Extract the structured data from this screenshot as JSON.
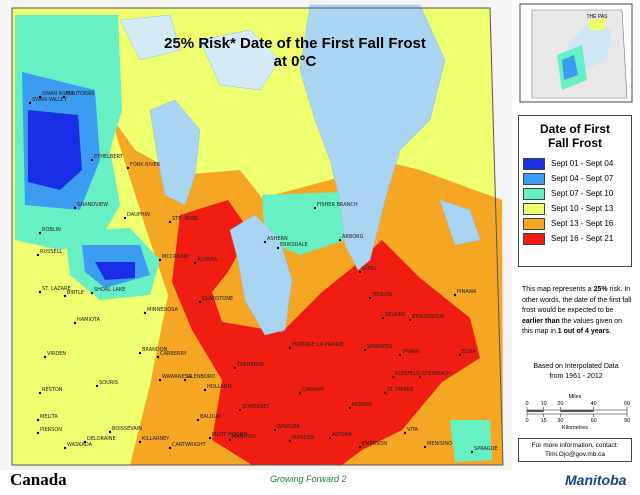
{
  "title": [
    "25% Risk* Date of the First Fall Frost",
    "at 0°C"
  ],
  "inset_label": "THE PAS",
  "legend": {
    "title": [
      "Date of First",
      "Fall Frost"
    ],
    "items": [
      {
        "label": "Sept 01 - Sept 04",
        "color": "#1a2ee6"
      },
      {
        "label": "Sept 04 - Sept 07",
        "color": "#3c9cf2"
      },
      {
        "label": "Sept 07 - Sept 10",
        "color": "#66f0c4"
      },
      {
        "label": "Sept 10 - Sept 13",
        "color": "#eeff70"
      },
      {
        "label": "Sept 13 - Sept 16",
        "color": "#f5a623"
      },
      {
        "label": "Sept 16 - Sept 21",
        "color": "#f01e12"
      }
    ]
  },
  "description": [
    "This map represents a ",
    "25%",
    " risk. In other words, the date of the first fall frost would be expected to be ",
    "earlier than",
    " the values given on this map in ",
    "1 out of 4 years",
    "."
  ],
  "based_on": [
    "Based on Interpolated Data",
    "from 1961 - 2012"
  ],
  "scale": {
    "miles_label": "Miles",
    "miles": [
      0,
      10,
      20,
      40,
      60
    ],
    "km_label": "Kilometres",
    "km": [
      0,
      15,
      30,
      60,
      90
    ]
  },
  "contact": [
    "For more information, contact:",
    "Timi.Ojo@gov.mb.ca"
  ],
  "footer": {
    "left": "Canada",
    "center": "Growing Forward 2",
    "right": "Manitoba"
  },
  "towns": [
    "SWAN RIVER",
    "SWAN VALLEY",
    "MINITONAS",
    "ETHELBERT",
    "FORK RIVER",
    "GRANDVIEW",
    "DAUPHIN",
    "ROBLIN",
    "RUSSELL",
    "ST. LAZARE",
    "BIRTLE",
    "SHOAL LAKE",
    "HAMIOTA",
    "MINNEDOSA",
    "VIRDEN",
    "BRANDON",
    "SOURIS",
    "RESTON",
    "MELITA",
    "PIERSON",
    "WASKADA",
    "DELORAINE",
    "BOISSEVAIN",
    "KILLARNEY",
    "CARTWRIGHT",
    "CARBERRY",
    "WAWANESA",
    "GLENBORO",
    "BALDUR",
    "PILOT MOUND",
    "MANITOU",
    "SOMERSET",
    "HOLLAND",
    "TREHERNE",
    "GLADSTONE",
    "MCCREARY",
    "ALONSA",
    "STE. ROSE",
    "ASHERN",
    "ERIKSDALE",
    "FISHER BRANCH",
    "ARBORG",
    "GIMLI",
    "TEULON",
    "SELKIRK",
    "BEAUSEJOUR",
    "PINAWA",
    "WINNIPEG",
    "PORTAGE LA PRAIRIE",
    "CARMAN",
    "MORRIS",
    "WINKLER",
    "MORDEN",
    "ALTONA",
    "EMERSON",
    "ST. PIERRE",
    "KLEEFELD",
    "STEINBACH",
    "VIVIAN",
    "ELMA",
    "VITA",
    "MENISINO",
    "SPRAGUE"
  ]
}
